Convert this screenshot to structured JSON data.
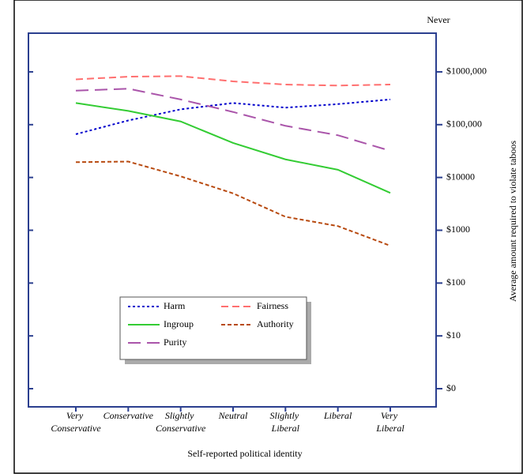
{
  "chart_data": {
    "type": "line",
    "top_label": "Never",
    "x_label": "Self-reported political identity",
    "y_label": "Average amount required to violate taboos",
    "categories": [
      "Very Conservative",
      "Conservative",
      "Slightly Conservative",
      "Neutral",
      "Slightly Liberal",
      "Liberal",
      "Very Liberal"
    ],
    "series": [
      {
        "name": "Harm",
        "color": "#0000cc",
        "dash": "3,3",
        "values": [
          66000,
          120000,
          195000,
          257000,
          210000,
          245000,
          300000
        ]
      },
      {
        "name": "Fairness",
        "color": "#ff6f6f",
        "dash": "9,5",
        "values": [
          720000,
          810000,
          830000,
          660000,
          575000,
          550000,
          575000
        ]
      },
      {
        "name": "Ingroup",
        "color": "#33cc33",
        "dash": "none",
        "values": [
          257000,
          182000,
          115000,
          45000,
          22000,
          14000,
          5100
        ]
      },
      {
        "name": "Authority",
        "color": "#b84a10",
        "dash": "5,3",
        "values": [
          19500,
          20000,
          10500,
          5000,
          1800,
          1200,
          510
        ]
      },
      {
        "name": "Purity",
        "color": "#aa55aa",
        "dash": "16,8",
        "values": [
          440000,
          480000,
          300000,
          174000,
          95000,
          63000,
          32000
        ]
      }
    ],
    "scale": "log",
    "ylim": [
      0,
      5400000
    ],
    "yticks": [
      {
        "value": 0,
        "label": "$0"
      },
      {
        "value": 10,
        "label": "$10"
      },
      {
        "value": 100,
        "label": "$100"
      },
      {
        "value": 1000,
        "label": "$1000"
      },
      {
        "value": 10000,
        "label": "$10000"
      },
      {
        "value": 100000,
        "label": "$100,000"
      },
      {
        "value": 1000000,
        "label": "$1000,000"
      }
    ]
  }
}
